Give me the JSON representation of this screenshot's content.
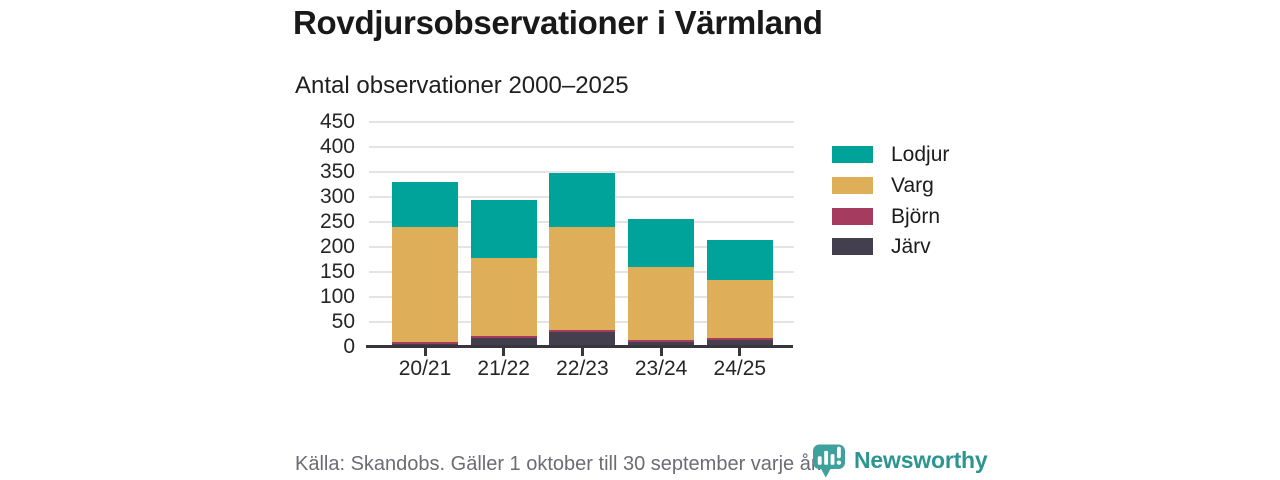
{
  "header": {
    "title": "Rovdjursobservationer i Värmland",
    "subtitle": "Antal observationer 2000–2025"
  },
  "chart_data": {
    "type": "bar",
    "stacked": true,
    "title": "Rovdjursobservationer i Värmland",
    "subtitle": "Antal observationer 2000–2025",
    "categories": [
      "20/21",
      "21/22",
      "22/23",
      "23/24",
      "24/25"
    ],
    "series": [
      {
        "name": "Järv",
        "color": "#433f4f",
        "values": [
          6,
          18,
          30,
          10,
          14
        ]
      },
      {
        "name": "Björn",
        "color": "#a53b5e",
        "values": [
          5,
          4,
          5,
          4,
          4
        ]
      },
      {
        "name": "Varg",
        "color": "#dfae58",
        "values": [
          229,
          156,
          205,
          146,
          116
        ]
      },
      {
        "name": "Lodjur",
        "color": "#00a39a",
        "values": [
          90,
          117,
          109,
          97,
          80
        ]
      }
    ],
    "totals": [
      330,
      295,
      349,
      257,
      214
    ],
    "ylim": [
      0,
      450
    ],
    "yticks": [
      0,
      50,
      100,
      150,
      200,
      250,
      300,
      350,
      400,
      450
    ],
    "grid": true,
    "legend": {
      "position": "right",
      "items": [
        "Lodjur",
        "Varg",
        "Björn",
        "Järv"
      ]
    },
    "colors": {
      "gridline": "#e4e4e4",
      "axis": "#38353f",
      "tick_label": "#262626"
    }
  },
  "footer": {
    "source": "Källa: Skandobs. Gäller 1 oktober till 30 september varje år.",
    "brand": "Newsworthy",
    "brand_color": "#2d958f",
    "logo_color": "#3fa19b",
    "logo_icon": "bar-chart-speech-bubble"
  }
}
